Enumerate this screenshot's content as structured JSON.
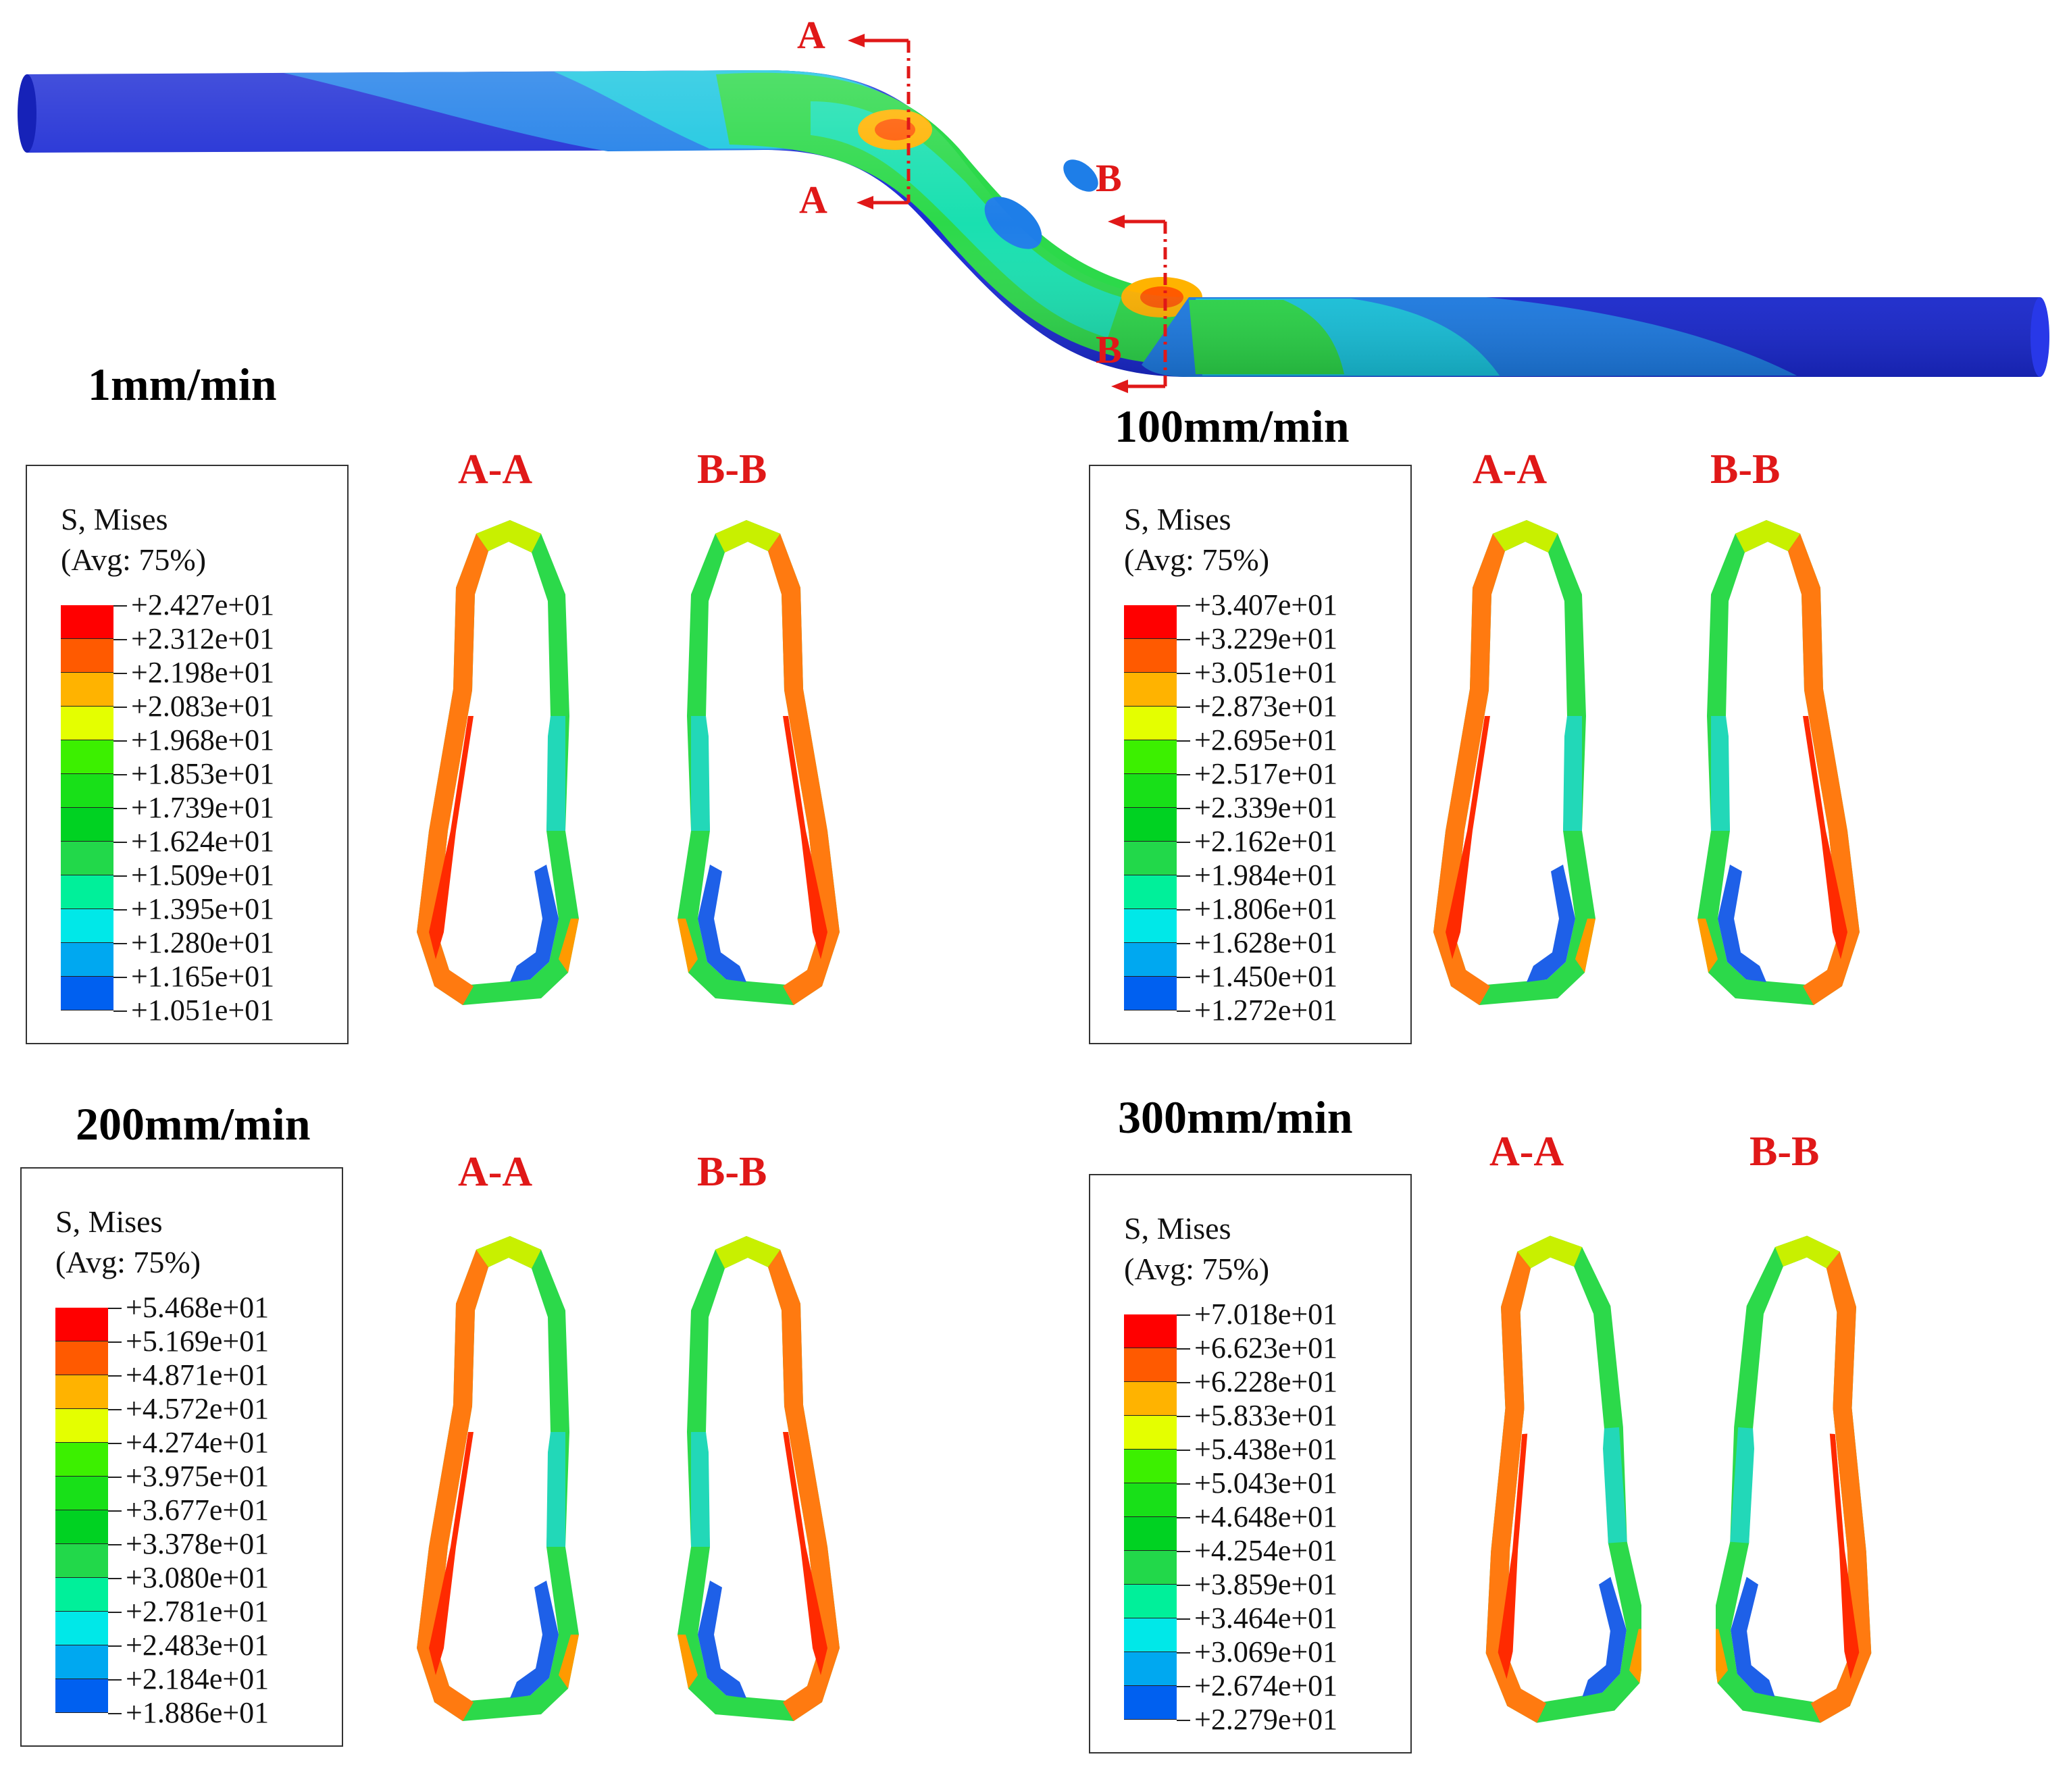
{
  "figure": {
    "cut_labels": {
      "a_top": "A",
      "a_bottom": "A",
      "b_top": "B",
      "b_bottom": "B"
    },
    "colors": {
      "pipe_blue": "#1b2ad4",
      "section_label": "#e01818"
    }
  },
  "panels": [
    {
      "title": "1mm/min",
      "legend_title": "S, Mises",
      "legend_sub": "(Avg: 75%)",
      "section_a": "A-A",
      "section_b": "B-B",
      "legend_values": [
        "+2.427e+01",
        "+2.312e+01",
        "+2.198e+01",
        "+2.083e+01",
        "+1.968e+01",
        "+1.853e+01",
        "+1.739e+01",
        "+1.624e+01",
        "+1.509e+01",
        "+1.395e+01",
        "+1.280e+01",
        "+1.165e+01",
        "+1.051e+01"
      ]
    },
    {
      "title": "100mm/min",
      "legend_title": "S, Mises",
      "legend_sub": "(Avg: 75%)",
      "section_a": "A-A",
      "section_b": "B-B",
      "legend_values": [
        "+3.407e+01",
        "+3.229e+01",
        "+3.051e+01",
        "+2.873e+01",
        "+2.695e+01",
        "+2.517e+01",
        "+2.339e+01",
        "+2.162e+01",
        "+1.984e+01",
        "+1.806e+01",
        "+1.628e+01",
        "+1.450e+01",
        "+1.272e+01"
      ]
    },
    {
      "title": "200mm/min",
      "legend_title": "S, Mises",
      "legend_sub": "(Avg: 75%)",
      "section_a": "A-A",
      "section_b": "B-B",
      "legend_values": [
        "+5.468e+01",
        "+5.169e+01",
        "+4.871e+01",
        "+4.572e+01",
        "+4.274e+01",
        "+3.975e+01",
        "+3.677e+01",
        "+3.378e+01",
        "+3.080e+01",
        "+2.781e+01",
        "+2.483e+01",
        "+2.184e+01",
        "+1.886e+01"
      ]
    },
    {
      "title": "300mm/min",
      "legend_title": "S, Mises",
      "legend_sub": "(Avg: 75%)",
      "section_a": "A-A",
      "section_b": "B-B",
      "legend_values": [
        "+7.018e+01",
        "+6.623e+01",
        "+6.228e+01",
        "+5.833e+01",
        "+5.438e+01",
        "+5.043e+01",
        "+4.648e+01",
        "+4.254e+01",
        "+3.859e+01",
        "+3.464e+01",
        "+3.069e+01",
        "+2.674e+01",
        "+2.279e+01"
      ]
    }
  ],
  "colormap": [
    "#ff0000",
    "#ff5a00",
    "#ffb300",
    "#e4ff00",
    "#3cf000",
    "#18e018",
    "#00d222",
    "#22d84a",
    "#00f09a",
    "#00e8e8",
    "#00a8f0",
    "#0060f0",
    "#0000ee"
  ]
}
